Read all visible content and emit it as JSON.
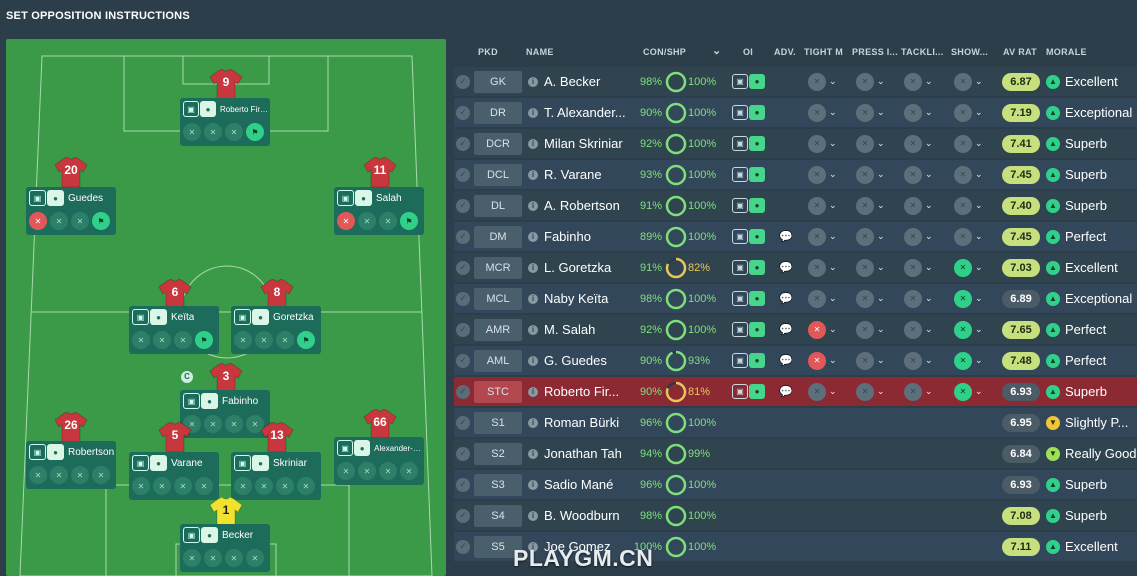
{
  "page_title": "SET OPPOSITION INSTRUCTIONS",
  "pitch": {
    "captain_badge": "C",
    "players": [
      {
        "number": "9",
        "name": "Roberto Firmi..."
      },
      {
        "number": "20",
        "name": "Guedes"
      },
      {
        "number": "11",
        "name": "Salah"
      },
      {
        "number": "6",
        "name": "Keïta"
      },
      {
        "number": "8",
        "name": "Goretzka"
      },
      {
        "number": "3",
        "name": "Fabinho"
      },
      {
        "number": "26",
        "name": "Robertson"
      },
      {
        "number": "5",
        "name": "Varane"
      },
      {
        "number": "13",
        "name": "Skriniar"
      },
      {
        "number": "66",
        "name": "Alexander-Ar..."
      },
      {
        "number": "1",
        "name": "Becker"
      }
    ]
  },
  "table": {
    "headers": {
      "pkd": "PKD",
      "name": "NAME",
      "con_shp": "CON/SHP",
      "oi": "OI",
      "adv": "ADV.",
      "tight": "TIGHT M",
      "press": "PRESS I...",
      "tackling": "TACKLI...",
      "show": "SHOW...",
      "av_rat": "AV RAT",
      "morale": "MORALE"
    },
    "rows": [
      {
        "pos": "GK",
        "name": "A. Becker",
        "con": "98%",
        "shp": "100%",
        "rat": "6.87",
        "morale": "Excellent"
      },
      {
        "pos": "DR",
        "name": "T. Alexander...",
        "con": "90%",
        "shp": "100%",
        "rat": "7.19",
        "morale": "Exceptional"
      },
      {
        "pos": "DCR",
        "name": "Milan Skriniar",
        "con": "92%",
        "shp": "100%",
        "rat": "7.41",
        "morale": "Superb"
      },
      {
        "pos": "DCL",
        "name": "R. Varane",
        "con": "93%",
        "shp": "100%",
        "rat": "7.45",
        "morale": "Superb"
      },
      {
        "pos": "DL",
        "name": "A. Robertson",
        "con": "91%",
        "shp": "100%",
        "rat": "7.40",
        "morale": "Superb"
      },
      {
        "pos": "DM",
        "name": "Fabinho",
        "con": "89%",
        "shp": "100%",
        "rat": "7.45",
        "morale": "Perfect"
      },
      {
        "pos": "MCR",
        "name": "L. Goretzka",
        "con": "91%",
        "shp": "82%",
        "rat": "7.03",
        "morale": "Excellent"
      },
      {
        "pos": "MCL",
        "name": "Naby Keïta",
        "con": "98%",
        "shp": "100%",
        "rat": "6.89",
        "morale": "Exceptional"
      },
      {
        "pos": "AMR",
        "name": "M. Salah",
        "con": "92%",
        "shp": "100%",
        "rat": "7.65",
        "morale": "Perfect"
      },
      {
        "pos": "AML",
        "name": "G. Guedes",
        "con": "90%",
        "shp": "93%",
        "rat": "7.48",
        "morale": "Perfect"
      },
      {
        "pos": "STC",
        "name": "Roberto Fir...",
        "con": "90%",
        "shp": "81%",
        "rat": "6.93",
        "morale": "Superb"
      },
      {
        "pos": "S1",
        "name": "Roman Bürki",
        "con": "96%",
        "shp": "100%",
        "rat": "6.95",
        "morale": "Slightly P..."
      },
      {
        "pos": "S2",
        "name": "Jonathan Tah",
        "con": "94%",
        "shp": "99%",
        "rat": "6.84",
        "morale": "Really Good"
      },
      {
        "pos": "S3",
        "name": "Sadio Mané",
        "con": "96%",
        "shp": "100%",
        "rat": "6.93",
        "morale": "Superb"
      },
      {
        "pos": "S4",
        "name": "B. Woodburn",
        "con": "98%",
        "shp": "100%",
        "rat": "7.08",
        "morale": "Superb"
      },
      {
        "pos": "S5",
        "name": "Joe Gomez",
        "con": "100%",
        "shp": "100%",
        "rat": "7.11",
        "morale": "Excellent"
      }
    ]
  },
  "watermark": "PLAYGM.CN"
}
